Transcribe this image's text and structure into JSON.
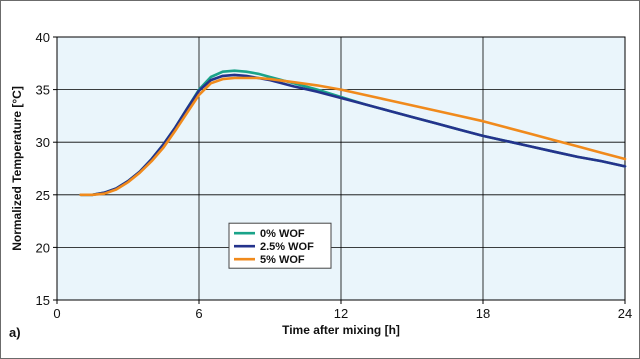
{
  "chart_data": {
    "type": "line",
    "xlabel": "Time after mixing [h]",
    "ylabel": "Normalized Temperature [°C]",
    "panel_label": "a)",
    "xlim": [
      0,
      24
    ],
    "ylim": [
      15,
      40
    ],
    "x_ticks": [
      0,
      6,
      12,
      18,
      24
    ],
    "y_ticks": [
      15,
      20,
      25,
      30,
      35,
      40
    ],
    "grid": true,
    "legend_position": "center-left",
    "background_color": "#eaf5fb",
    "grid_color": "#000000",
    "series": [
      {
        "name": "0% WOF",
        "color": "#1aa389",
        "x": [
          1,
          1.5,
          2,
          2.5,
          3,
          3.5,
          4,
          4.5,
          5,
          5.5,
          6,
          6.5,
          7,
          7.5,
          8,
          8.5,
          9,
          10,
          11,
          12,
          13,
          14,
          15,
          16,
          17,
          18,
          19,
          20,
          21,
          22,
          23,
          24
        ],
        "y": [
          25,
          25,
          25.2,
          25.6,
          26.3,
          27.2,
          28.4,
          29.8,
          31.4,
          33.2,
          35.0,
          36.2,
          36.7,
          36.8,
          36.7,
          36.5,
          36.2,
          35.6,
          35.0,
          34.3,
          33.6,
          33.0,
          32.4,
          31.8,
          31.2,
          30.6,
          30.1,
          29.6,
          29.1,
          28.6,
          28.2,
          27.7
        ]
      },
      {
        "name": "2.5% WOF",
        "color": "#24338c",
        "x": [
          1,
          1.5,
          2,
          2.5,
          3,
          3.5,
          4,
          4.5,
          5,
          5.5,
          6,
          6.5,
          7,
          7.5,
          8,
          8.5,
          9,
          10,
          11,
          12,
          13,
          14,
          15,
          16,
          17,
          18,
          19,
          20,
          21,
          22,
          23,
          24
        ],
        "y": [
          25,
          25,
          25.2,
          25.6,
          26.3,
          27.2,
          28.4,
          29.8,
          31.4,
          33.2,
          34.9,
          35.9,
          36.3,
          36.4,
          36.3,
          36.1,
          35.9,
          35.3,
          34.8,
          34.2,
          33.6,
          33.0,
          32.4,
          31.8,
          31.2,
          30.6,
          30.1,
          29.6,
          29.1,
          28.6,
          28.2,
          27.7
        ]
      },
      {
        "name": "5% WOF",
        "color": "#f08a1c",
        "x": [
          1,
          1.5,
          2,
          2.5,
          3,
          3.5,
          4,
          4.5,
          5,
          5.5,
          6,
          6.5,
          7,
          7.5,
          8,
          8.5,
          9,
          10,
          11,
          12,
          13,
          14,
          15,
          16,
          17,
          18,
          19,
          20,
          21,
          22,
          23,
          24
        ],
        "y": [
          25,
          25,
          25.1,
          25.5,
          26.2,
          27.1,
          28.2,
          29.5,
          31.1,
          32.8,
          34.5,
          35.6,
          36.0,
          36.1,
          36.1,
          36.1,
          36.0,
          35.7,
          35.4,
          35.0,
          34.5,
          34.0,
          33.5,
          33.0,
          32.5,
          32.0,
          31.4,
          30.8,
          30.2,
          29.6,
          29.0,
          28.4
        ]
      }
    ]
  }
}
